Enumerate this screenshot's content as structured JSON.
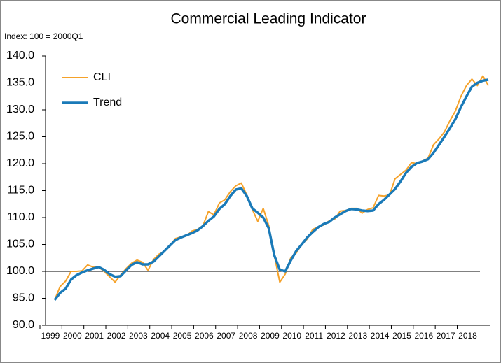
{
  "chart_data": {
    "type": "line",
    "title": "Commercial Leading Indicator",
    "y_label": "Index: 100 = 2000Q1",
    "categories": [
      "1999",
      null,
      null,
      null,
      "2000",
      null,
      null,
      null,
      "2001",
      null,
      null,
      null,
      "2002",
      null,
      null,
      null,
      "2003",
      null,
      null,
      null,
      "2004",
      null,
      null,
      null,
      "2005",
      null,
      null,
      null,
      "2006",
      null,
      null,
      null,
      "2007",
      null,
      null,
      null,
      "2008",
      null,
      null,
      null,
      "2009",
      null,
      null,
      null,
      "2010",
      null,
      null,
      null,
      "2011",
      null,
      null,
      null,
      "2012",
      null,
      null,
      null,
      "2013",
      null,
      null,
      null,
      "2014",
      null,
      null,
      null,
      "2015",
      null,
      null,
      null,
      "2016",
      null,
      null,
      null,
      "2017",
      null,
      null,
      null,
      "2018",
      null,
      null,
      null
    ],
    "series": [
      {
        "name": "CLI",
        "color": "#f5a22a",
        "width": 2,
        "values": [
          94.7,
          97.2,
          98.2,
          100.0,
          100.0,
          100.1,
          101.2,
          100.8,
          100.8,
          100.0,
          99.0,
          98.0,
          99.3,
          100.5,
          101.5,
          102.1,
          101.7,
          100.2,
          102.2,
          103.2,
          103.7,
          104.8,
          106.1,
          106.4,
          106.6,
          107.5,
          107.8,
          108.5,
          111.1,
          110.5,
          112.7,
          113.3,
          114.8,
          115.9,
          116.4,
          114.2,
          111.5,
          109.3,
          111.7,
          108.5,
          103.0,
          98.0,
          99.5,
          102.5,
          103.4,
          105.0,
          106.0,
          107.8,
          108.3,
          108.6,
          109.4,
          109.7,
          111.2,
          111.3,
          111.7,
          111.7,
          110.8,
          111.5,
          111.8,
          114.1,
          114.0,
          114.2,
          117.2,
          118.0,
          118.8,
          120.2,
          120.0,
          120.5,
          121.0,
          123.5,
          124.6,
          125.9,
          128.0,
          129.8,
          132.5,
          134.5,
          135.7,
          134.5,
          136.3,
          134.5
        ]
      },
      {
        "name": "Trend",
        "color": "#1a7ab8",
        "width": 3.5,
        "values": [
          94.7,
          96.0,
          96.8,
          98.5,
          99.3,
          99.8,
          100.2,
          100.5,
          100.8,
          100.3,
          99.5,
          99.0,
          99.1,
          100.2,
          101.2,
          101.7,
          101.3,
          101.3,
          101.8,
          102.8,
          103.8,
          104.8,
          105.8,
          106.3,
          106.7,
          107.1,
          107.6,
          108.4,
          109.4,
          110.2,
          111.6,
          112.5,
          114.0,
          115.2,
          115.4,
          114.0,
          111.7,
          110.9,
          110.0,
          108.0,
          103.0,
          100.3,
          100.0,
          102.0,
          103.8,
          105.0,
          106.3,
          107.3,
          108.2,
          108.8,
          109.2,
          110.0,
          110.6,
          111.2,
          111.6,
          111.5,
          111.3,
          111.2,
          111.3,
          112.5,
          113.3,
          114.3,
          115.3,
          116.7,
          118.3,
          119.4,
          120.1,
          120.4,
          120.8,
          122.0,
          123.5,
          125.0,
          126.6,
          128.3,
          130.5,
          132.5,
          134.3,
          135.0,
          135.4,
          135.6
        ]
      }
    ],
    "reference_line": 100,
    "ylim": [
      90,
      140
    ],
    "yticks": [
      {
        "value": 90,
        "label": "90.0"
      },
      {
        "value": 95,
        "label": "95.0"
      },
      {
        "value": 100,
        "label": "100.0"
      },
      {
        "value": 105,
        "label": "105.0"
      },
      {
        "value": 110,
        "label": "110.0"
      },
      {
        "value": 115,
        "label": "115.0"
      },
      {
        "value": 120,
        "label": "120.0"
      },
      {
        "value": 125,
        "label": "125.0"
      },
      {
        "value": 130,
        "label": "130.0"
      },
      {
        "value": 135,
        "label": "135.0"
      },
      {
        "value": 140,
        "label": "140.0"
      }
    ],
    "legend": "upper left"
  }
}
